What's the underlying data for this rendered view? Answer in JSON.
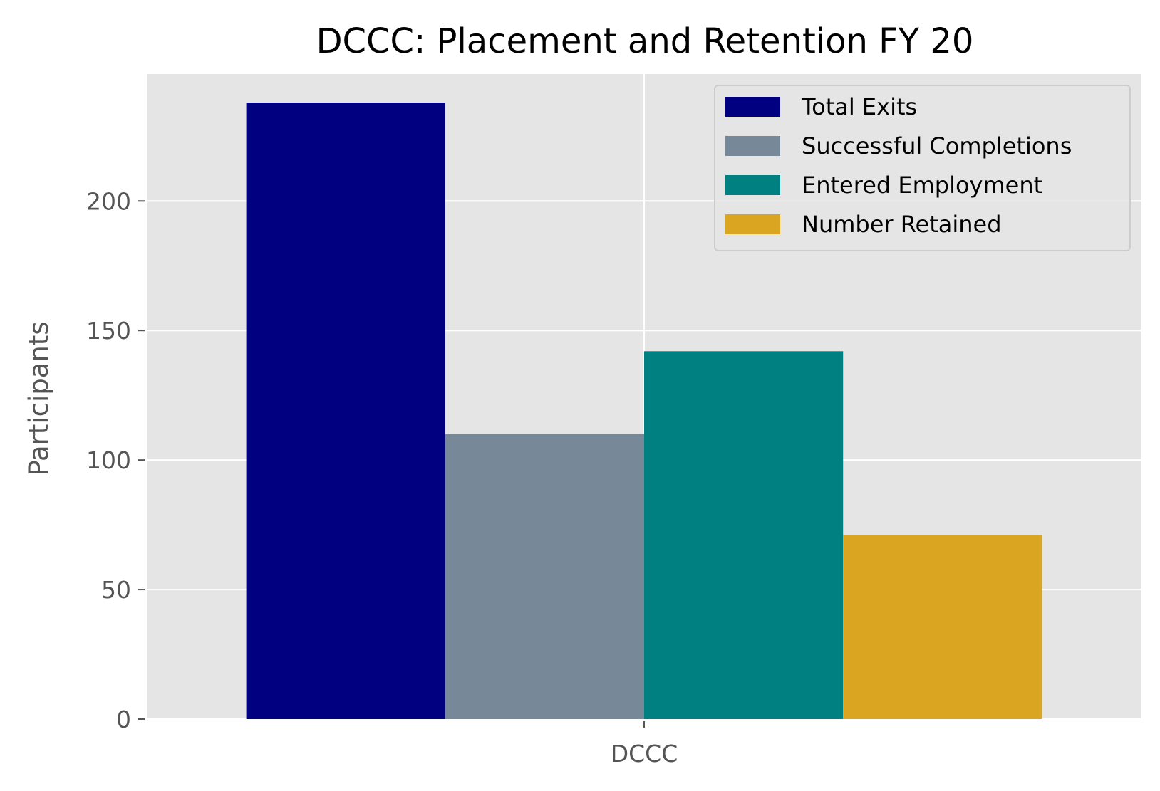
{
  "chart_data": {
    "type": "bar",
    "title": "DCCC: Placement and Retention FY 20",
    "xlabel": "",
    "ylabel": "Participants",
    "categories": [
      "DCCC"
    ],
    "series": [
      {
        "name": "Total Exits",
        "values": [
          238
        ],
        "color": "#000080"
      },
      {
        "name": "Successful Completions",
        "values": [
          110
        ],
        "color": "#778899"
      },
      {
        "name": "Entered Employment",
        "values": [
          142
        ],
        "color": "#008080"
      },
      {
        "name": "Number Retained",
        "values": [
          71
        ],
        "color": "#DAA520"
      }
    ],
    "ylim": [
      0,
      249
    ],
    "yticks": [
      0,
      50,
      100,
      150,
      200
    ],
    "grid": true,
    "legend_position": "top-right",
    "style": {
      "plot_background": "#E5E5E5",
      "grid_color": "#FFFFFF",
      "tick_label_color": "#555555"
    }
  }
}
